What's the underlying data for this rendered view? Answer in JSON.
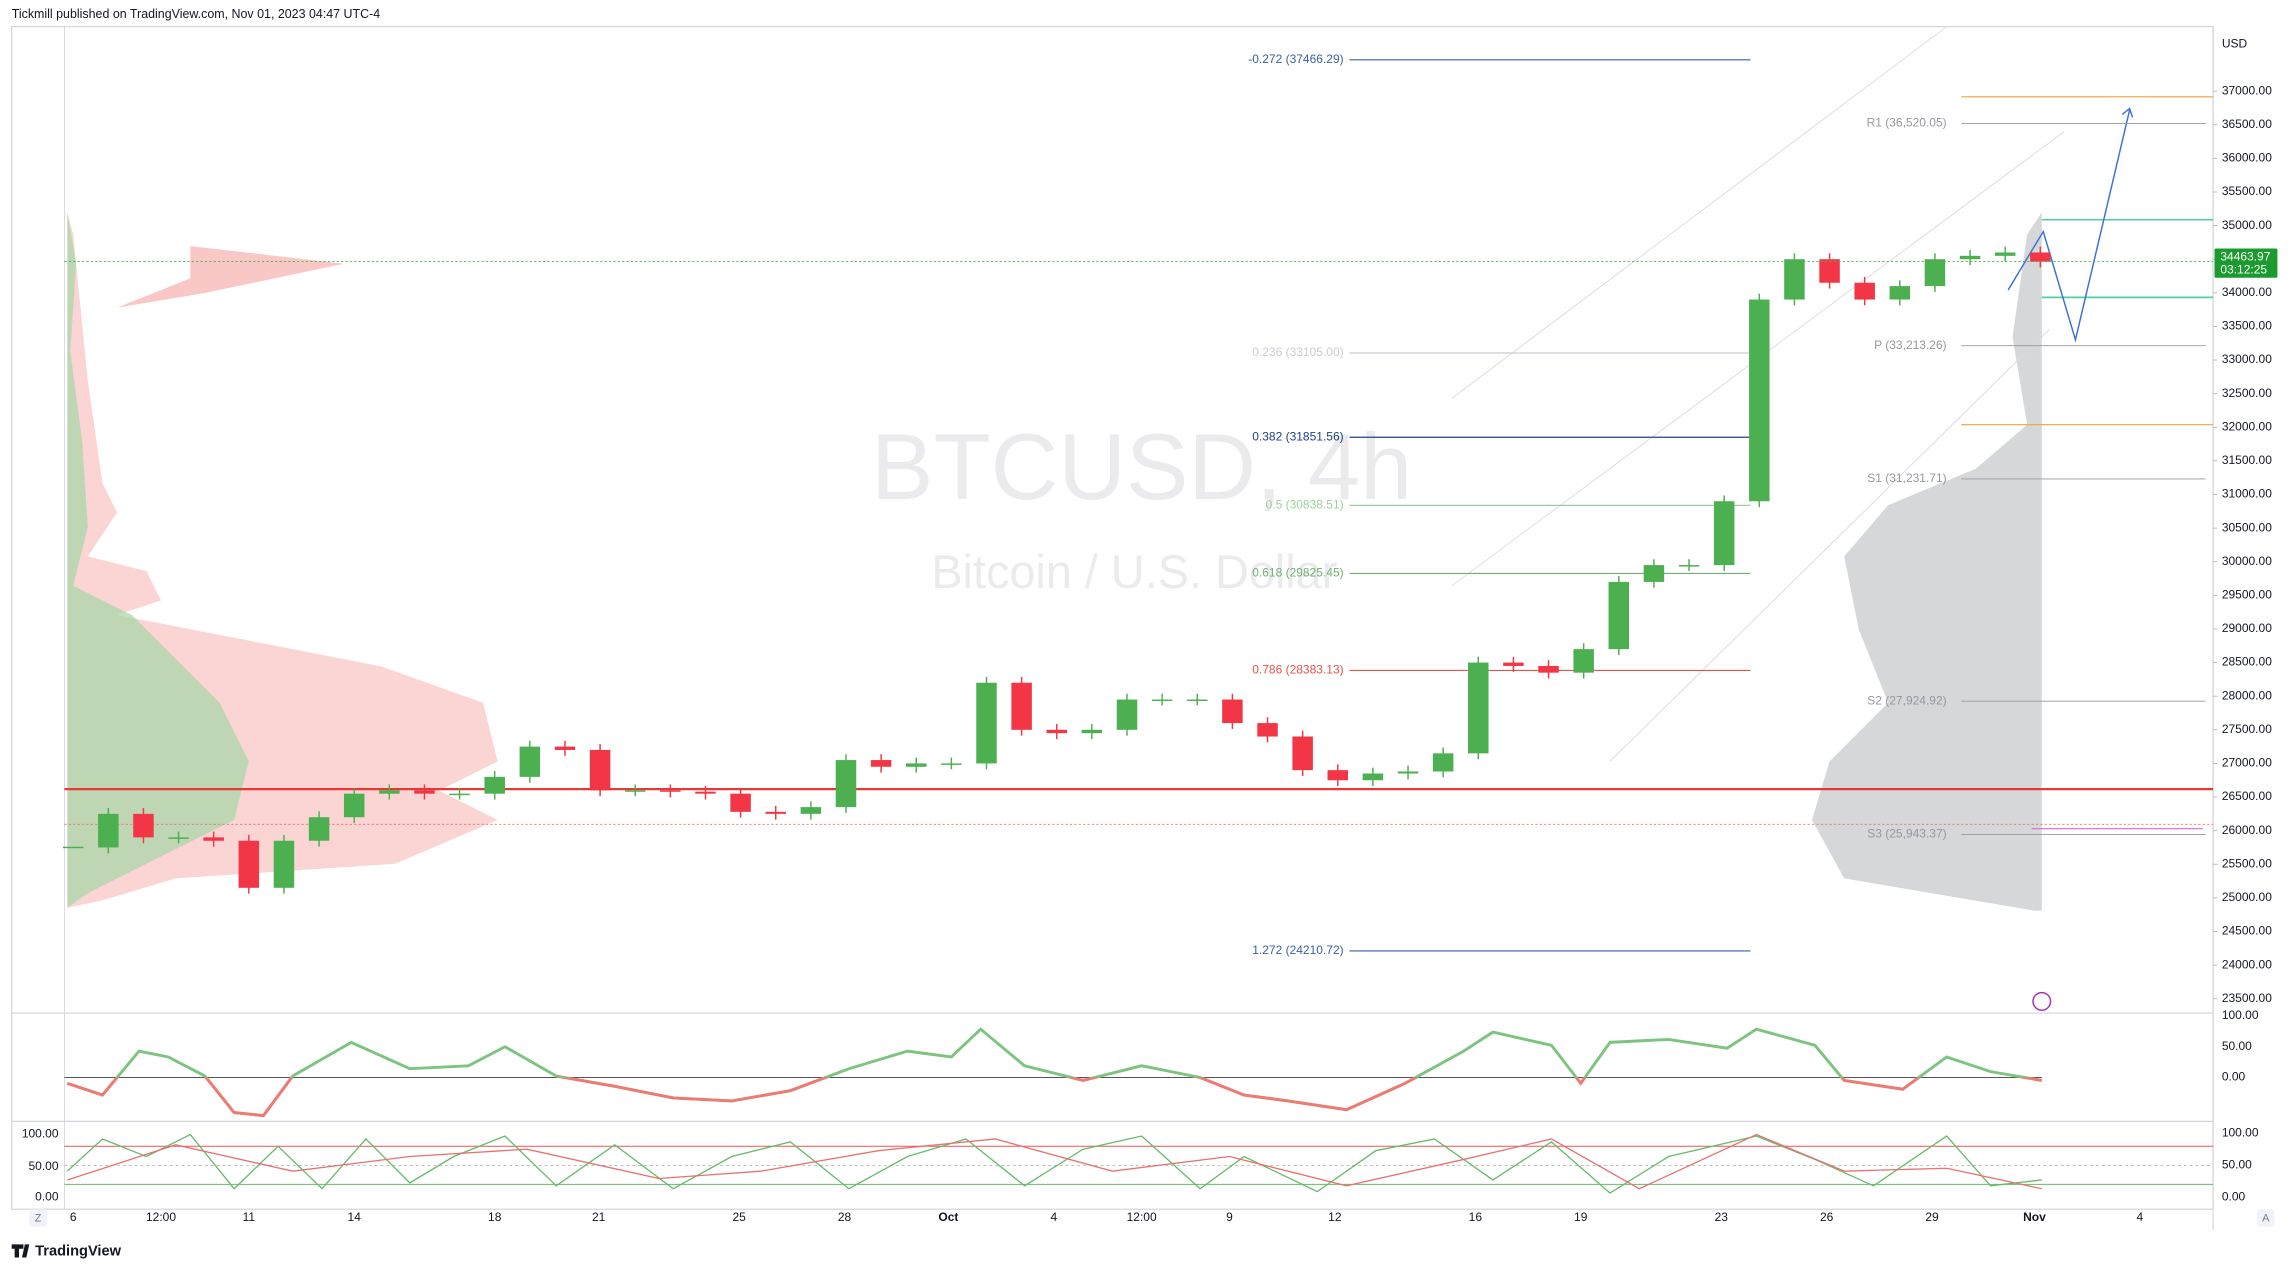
{
  "header": {
    "publisher": "Tickmill published on TradingView.com, Nov 01, 2023 04:47 UTC-4"
  },
  "watermark": {
    "symbol": "BTCUSD, 4h",
    "description": "Bitcoin / U.S. Dollar"
  },
  "chart_data": {
    "type": "candlestick",
    "currency": "USD",
    "up_color": "#4caf50",
    "down_color": "#f23645",
    "ylim": [
      23330,
      37960
    ],
    "yticks": [
      {
        "value": 37000,
        "label": "37000.00"
      },
      {
        "value": 36500,
        "label": "36500.00"
      },
      {
        "value": 36000,
        "label": "36000.00"
      },
      {
        "value": 35500,
        "label": "35500.00"
      },
      {
        "value": 35000,
        "label": "35000.00"
      },
      {
        "value": 34500,
        "label": "34500.00"
      },
      {
        "value": 34000,
        "label": "34000.00"
      },
      {
        "value": 33500,
        "label": "33500.00"
      },
      {
        "value": 33000,
        "label": "33000.00"
      },
      {
        "value": 32500,
        "label": "32500.00"
      },
      {
        "value": 32000,
        "label": "32000.00"
      },
      {
        "value": 31500,
        "label": "31500.00"
      },
      {
        "value": 31000,
        "label": "31000.00"
      },
      {
        "value": 30500,
        "label": "30500.00"
      },
      {
        "value": 30000,
        "label": "30000.00"
      },
      {
        "value": 29500,
        "label": "29500.00"
      },
      {
        "value": 29000,
        "label": "29000.00"
      },
      {
        "value": 28500,
        "label": "28500.00"
      },
      {
        "value": 28000,
        "label": "28000.00"
      },
      {
        "value": 27500,
        "label": "27500.00"
      },
      {
        "value": 27000,
        "label": "27000.00"
      },
      {
        "value": 26500,
        "label": "26500.00"
      },
      {
        "value": 26000,
        "label": "26000.00"
      },
      {
        "value": 25500,
        "label": "25500.00"
      },
      {
        "value": 25000,
        "label": "25000.00"
      },
      {
        "value": 24500,
        "label": "24500.00"
      },
      {
        "value": 24000,
        "label": "24000.00"
      },
      {
        "value": 23500,
        "label": "23500.00"
      }
    ],
    "closes": [
      25750,
      26250,
      25900,
      25900,
      25850,
      25150,
      25850,
      26200,
      26550,
      26600,
      26550,
      26550,
      26800,
      27250,
      27200,
      26600,
      26600,
      26580,
      26550,
      26280,
      26250,
      26350,
      27050,
      26950,
      27000,
      27000,
      28200,
      27500,
      27450,
      27500,
      27950,
      27950,
      27950,
      27600,
      27400,
      26900,
      26750,
      26850,
      26880,
      27150,
      28500,
      28450,
      28350,
      28700,
      29700,
      29950,
      29950,
      30900,
      33900,
      34500,
      34150,
      33900,
      34100,
      34500,
      34550,
      34600,
      34464
    ],
    "last_price": {
      "value": 34463.97,
      "label": "34463.97"
    },
    "countdown": "03:12:25",
    "fib_levels": [
      {
        "label": "-0.272 (37466.29)",
        "value": 37466.29,
        "color": "#3b5ea8"
      },
      {
        "label": "0.236 (33105.00)",
        "value": 33105.0,
        "color": "#c9ccd3"
      },
      {
        "label": "0.382 (31851.56)",
        "value": 31851.56,
        "color": "#1f3f86"
      },
      {
        "label": "0.5 (30838.51)",
        "value": 30838.51,
        "color": "#9ccf9e"
      },
      {
        "label": "0.618 (29825.45)",
        "value": 29825.45,
        "color": "#6fb072"
      },
      {
        "label": "0.786 (28383.13)",
        "value": 28383.13,
        "color": "#e5534b"
      },
      {
        "label": "1.272 (24210.72)",
        "value": 24210.72,
        "color": "#3b5ea8"
      }
    ],
    "pivots": [
      {
        "label": "R1 (36,520.05)",
        "value": 36520.05
      },
      {
        "label": "P (33,213.26)",
        "value": 33213.26
      },
      {
        "label": "S1 (31,231.71)",
        "value": 31231.71
      },
      {
        "label": "S2 (27,924.92)",
        "value": 27924.92
      },
      {
        "label": "S3 (25,943.37)",
        "value": 25943.37
      }
    ],
    "x_labels": [
      "6",
      "12:00",
      "11",
      "14",
      "18",
      "21",
      "25",
      "28",
      "Oct",
      "4",
      "12:00",
      "9",
      "12",
      "16",
      "19",
      "23",
      "26",
      "29",
      "Nov",
      "4"
    ]
  },
  "oscillator": {
    "ticks": [
      "100.00",
      "50.00",
      "0.00"
    ]
  },
  "stochastic": {
    "ticks": [
      "100.00",
      "50.00",
      "0.00"
    ]
  },
  "footer": {
    "brand": "TradingView",
    "left_button": "Z",
    "right_button": "A"
  }
}
